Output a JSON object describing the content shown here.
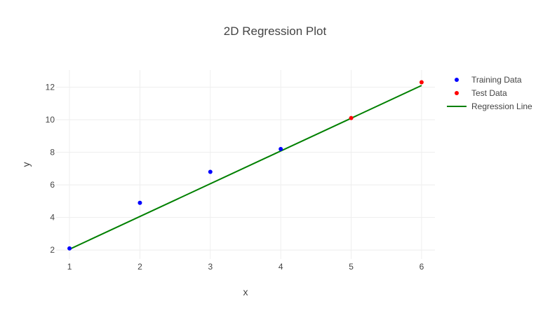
{
  "chart_data": {
    "type": "scatter",
    "title": "2D Regression Plot",
    "xlabel": "x",
    "ylabel": "y",
    "xlim": [
      0.81,
      6.19
    ],
    "ylim": [
      1.45,
      13.05
    ],
    "x_ticks": [
      1,
      2,
      3,
      4,
      5,
      6
    ],
    "y_ticks": [
      2,
      4,
      6,
      8,
      10,
      12
    ],
    "grid": true,
    "legend_position": "top-right",
    "series": [
      {
        "name": "Training Data",
        "mode": "markers",
        "color": "#0000ff",
        "x": [
          1,
          2,
          3,
          4
        ],
        "y": [
          2.1,
          4.9,
          6.8,
          8.2
        ]
      },
      {
        "name": "Test Data",
        "mode": "markers",
        "color": "#ff0000",
        "x": [
          5,
          6
        ],
        "y": [
          10.1,
          12.3
        ]
      },
      {
        "name": "Regression Line",
        "mode": "line",
        "color": "#008000",
        "x": [
          1,
          6
        ],
        "y": [
          2.05,
          12.1
        ]
      }
    ]
  }
}
